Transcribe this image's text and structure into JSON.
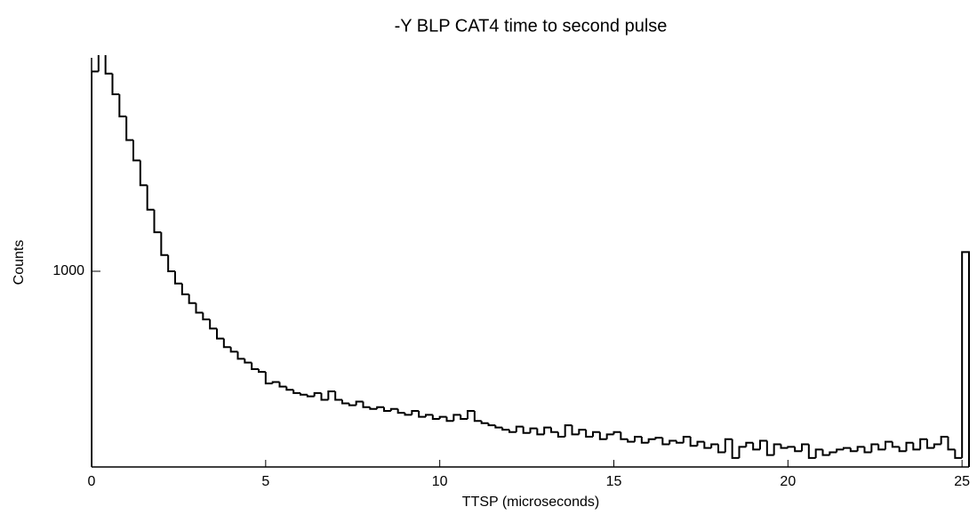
{
  "chart_data": {
    "type": "histogram",
    "title": "-Y BLP CAT4 time to second pulse",
    "xlabel": "TTSP (microseconds)",
    "ylabel": "Counts",
    "color": "#000000",
    "log_y": true,
    "xlim": [
      0,
      25.2
    ],
    "xticks": [
      0,
      5,
      10,
      15,
      20,
      25
    ],
    "ylim": [
      185,
      6300
    ],
    "yticks": [
      1000
    ],
    "bins": [
      0,
      0.2,
      0.4,
      0.6,
      0.8,
      1,
      1.2,
      1.4,
      1.6,
      1.8,
      2,
      2.2,
      2.4,
      2.6,
      2.8,
      3,
      3.2,
      3.4,
      3.6,
      3.8,
      4,
      4.2,
      4.4,
      4.6,
      4.8,
      5,
      5.2,
      5.4,
      5.6,
      5.8,
      6,
      6.2,
      6.4,
      6.6,
      6.8,
      7,
      7.2,
      7.4,
      7.6,
      7.8,
      8,
      8.2,
      8.4,
      8.6,
      8.8,
      9,
      9.2,
      9.4,
      9.6,
      9.8,
      10,
      10.2,
      10.4,
      10.6,
      10.8,
      11,
      11.2,
      11.4,
      11.6,
      11.8,
      12,
      12.2,
      12.4,
      12.6,
      12.8,
      13,
      13.2,
      13.4,
      13.6,
      13.8,
      14,
      14.2,
      14.4,
      14.6,
      14.8,
      15,
      15.2,
      15.4,
      15.6,
      15.8,
      16,
      16.2,
      16.4,
      16.6,
      16.8,
      17,
      17.2,
      17.4,
      17.6,
      17.8,
      18,
      18.2,
      18.4,
      18.6,
      18.8,
      19,
      19.2,
      19.4,
      19.6,
      19.8,
      20,
      20.2,
      20.4,
      20.6,
      20.8,
      21,
      21.2,
      21.4,
      21.6,
      21.8,
      22,
      22.2,
      22.4,
      22.6,
      22.8,
      23,
      23.2,
      23.4,
      23.6,
      23.8,
      24,
      24.2,
      24.4,
      24.6,
      24.8,
      25,
      25.2
    ],
    "values": [
      5600,
      7000,
      5500,
      4600,
      3800,
      3100,
      2600,
      2100,
      1700,
      1400,
      1150,
      1000,
      900,
      820,
      760,
      700,
      660,
      610,
      560,
      520,
      500,
      470,
      455,
      430,
      420,
      380,
      385,
      370,
      360,
      350,
      345,
      340,
      350,
      330,
      355,
      330,
      320,
      315,
      325,
      310,
      305,
      310,
      300,
      305,
      295,
      290,
      300,
      285,
      290,
      280,
      285,
      275,
      290,
      280,
      300,
      275,
      270,
      265,
      260,
      255,
      250,
      262,
      248,
      258,
      245,
      260,
      250,
      240,
      265,
      245,
      255,
      240,
      250,
      235,
      245,
      250,
      235,
      230,
      240,
      228,
      235,
      238,
      225,
      232,
      228,
      240,
      222,
      230,
      218,
      225,
      210,
      235,
      200,
      220,
      228,
      215,
      232,
      205,
      225,
      218,
      220,
      212,
      225,
      200,
      215,
      205,
      210,
      215,
      218,
      212,
      220,
      210,
      225,
      215,
      230,
      220,
      212,
      228,
      215,
      235,
      218,
      225,
      240,
      215,
      200,
      1180
    ]
  }
}
